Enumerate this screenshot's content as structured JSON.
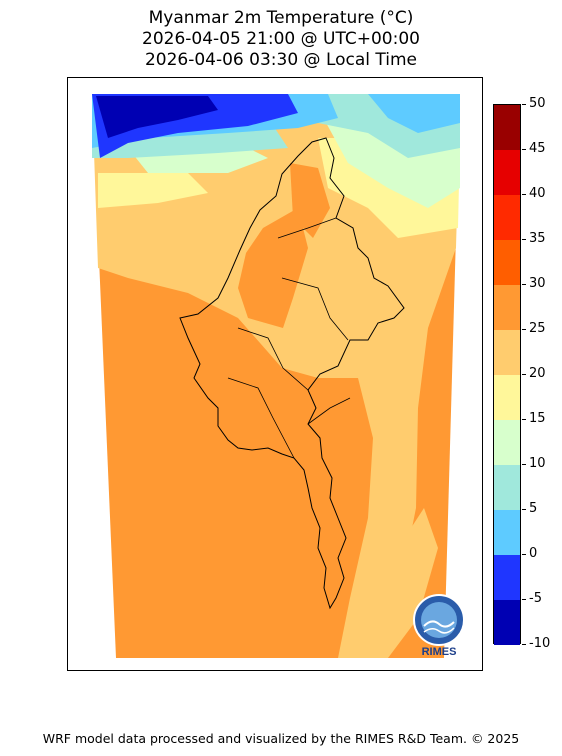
{
  "title": {
    "line1": "Myanmar 2m Temperature (°C)",
    "line2": "2026-04-05 21:00 @ UTC+00:00",
    "line3": "2026-04-06 03:30 @ Local Time"
  },
  "colorbar": {
    "min": -10,
    "max": 50,
    "step": 5,
    "tick_labels": [
      "50",
      "45",
      "40",
      "35",
      "30",
      "25",
      "20",
      "15",
      "10",
      "5",
      "0",
      "-5",
      "-10"
    ],
    "colors": [
      "#0000b3",
      "#1f36ff",
      "#5ecbff",
      "#a0e8dc",
      "#d7ffcc",
      "#fff79a",
      "#ffcc6e",
      "#ff9933",
      "#ff5e00",
      "#ff2a00",
      "#e60000",
      "#990000"
    ]
  },
  "map": {
    "country": "Myanmar",
    "variable": "2m Temperature",
    "units": "°C"
  },
  "logo": {
    "text": "RIMES"
  },
  "footer": {
    "text": "WRF model data processed and visualized by the RIMES R&D Team. © 2025"
  }
}
